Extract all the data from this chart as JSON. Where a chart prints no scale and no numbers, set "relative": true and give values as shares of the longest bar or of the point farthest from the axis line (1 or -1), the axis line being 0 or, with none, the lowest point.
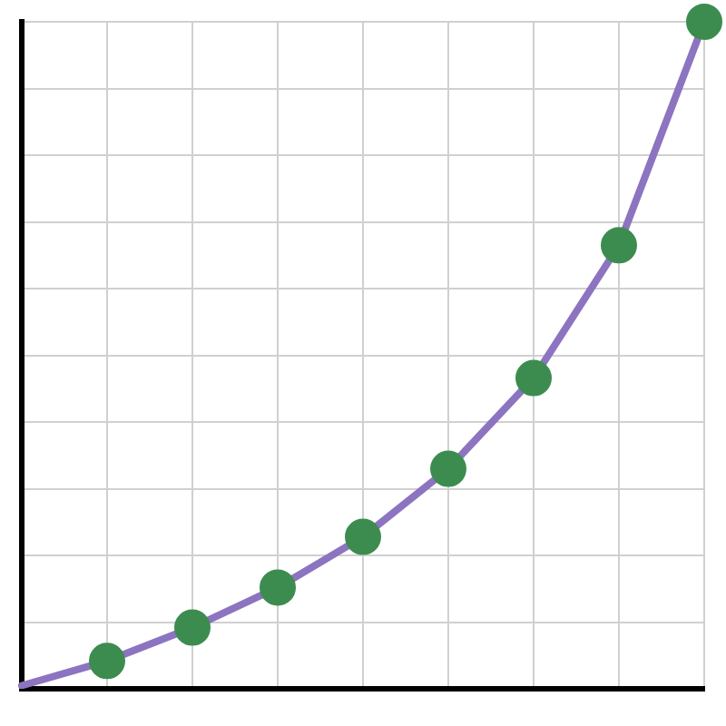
{
  "chart_data": {
    "type": "line",
    "relative": true,
    "grid": true,
    "legend": false,
    "categories": [
      null,
      null,
      null,
      null,
      null,
      null,
      null,
      null,
      null
    ],
    "series": [
      {
        "color": "#8c74c0",
        "marker": "circle",
        "colors": [
          null,
          "#3d8c4f",
          "#3d8c4f",
          "#3d8c4f",
          "#3d8c4f",
          "#3d8c4f",
          "#3d8c4f",
          "#3d8c4f",
          "#3d8c4f"
        ],
        "values": [
          0.005,
          0.042,
          0.092,
          0.152,
          0.228,
          0.33,
          0.466,
          0.665,
          1
        ]
      }
    ]
  }
}
